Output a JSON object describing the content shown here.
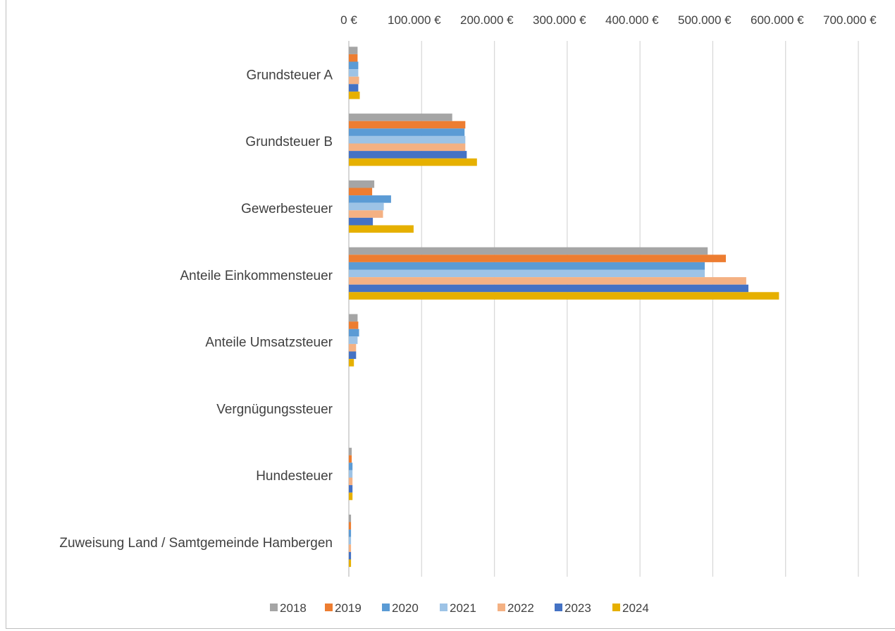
{
  "chart_data": {
    "type": "bar",
    "orientation": "horizontal",
    "categories": [
      "Grundsteuer A",
      "Grundsteuer B",
      "Gewerbesteuer",
      "Anteile Einkommensteuer",
      "Anteile Umsatzsteuer",
      "Vergnügungssteuer",
      "Hundesteuer",
      "Zuweisung  Land / Samtgemeinde Hambergen"
    ],
    "series": [
      {
        "name": "2018",
        "color": "#a5a5a5",
        "values": [
          12000,
          142000,
          35000,
          493000,
          12000,
          0,
          4000,
          3000
        ]
      },
      {
        "name": "2019",
        "color": "#ed7d31",
        "values": [
          12000,
          160000,
          32000,
          518000,
          13000,
          0,
          4000,
          3000
        ]
      },
      {
        "name": "2020",
        "color": "#5b9bd5",
        "values": [
          13000,
          159000,
          58000,
          489000,
          14000,
          0,
          5000,
          3000
        ]
      },
      {
        "name": "2021",
        "color": "#9dc3e6",
        "values": [
          13000,
          160000,
          48000,
          489000,
          12000,
          0,
          5000,
          3000
        ]
      },
      {
        "name": "2022",
        "color": "#f4b183",
        "values": [
          14000,
          160000,
          47000,
          546000,
          10000,
          0,
          5000,
          3000
        ]
      },
      {
        "name": "2023",
        "color": "#4472c4",
        "values": [
          13000,
          162000,
          33000,
          549000,
          10000,
          0,
          5000,
          3000
        ]
      },
      {
        "name": "2024",
        "color": "#e6b000",
        "values": [
          15000,
          176000,
          89000,
          591000,
          7000,
          0,
          5000,
          3000
        ]
      }
    ],
    "xlim": [
      0,
      700000
    ],
    "xticks": [
      "0 €",
      "100.000 €",
      "200.000 €",
      "300.000 €",
      "400.000 €",
      "500.000 €",
      "600.000 €",
      "700.000 €"
    ],
    "axis_position": "top",
    "grid": true,
    "legend": "bottom",
    "gridline_color": "#d9d9d9"
  }
}
